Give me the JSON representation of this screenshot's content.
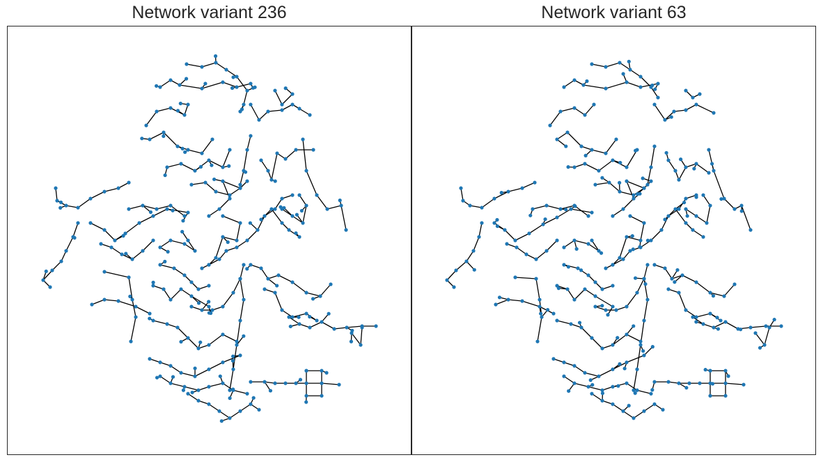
{
  "panels": [
    {
      "title": "Network variant 236"
    },
    {
      "title": "Network variant 63"
    }
  ],
  "colors": {
    "node": "#1f77b4",
    "edge": "#000000",
    "frame": "#262626"
  }
}
